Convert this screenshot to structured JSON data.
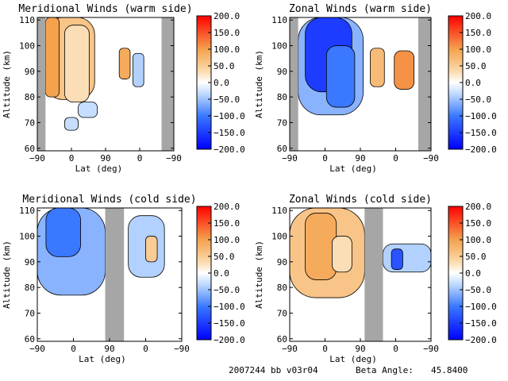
{
  "footer": {
    "date_code": "2007244 bb v03r04",
    "beta_label": "Beta Angle:",
    "beta_value": "45.8400"
  },
  "colorbar": {
    "ticks": [
      "200.0",
      "150.0",
      "100.0",
      "50.0",
      "0.0",
      "−50.0",
      "−100.0",
      "−150.0",
      "−200.0"
    ],
    "min": -200,
    "max": 200,
    "stops": [
      {
        "v": -200,
        "color": "#0000ff"
      },
      {
        "v": -100,
        "color": "#3a78ff"
      },
      {
        "v": -35,
        "color": "#bcd8ff"
      },
      {
        "v": 0,
        "color": "#ffffff"
      },
      {
        "v": 35,
        "color": "#fbd9aa"
      },
      {
        "v": 100,
        "color": "#f4a24e"
      },
      {
        "v": 200,
        "color": "#ff0000"
      }
    ]
  },
  "chart_data": [
    {
      "type": "heatmap",
      "title": "Meridional Winds (warm side)",
      "xlabel": "Lat (deg)",
      "ylabel": "Altitude (km)",
      "xticks": [
        "−90",
        "0",
        "90",
        "0",
        "−90"
      ],
      "ylim": [
        59,
        111
      ],
      "yticks": [
        60,
        70,
        80,
        90,
        100,
        110
      ],
      "gray_bands": [
        [
          0,
          0.06
        ],
        [
          0.91,
          1.0
        ]
      ],
      "regions": [
        {
          "value": 60,
          "x": [
            0.06,
            0.42
          ],
          "y": [
            79,
            111
          ]
        },
        {
          "value": 100,
          "x": [
            0.06,
            0.16
          ],
          "y": [
            80,
            111
          ]
        },
        {
          "value": 30,
          "x": [
            0.2,
            0.38
          ],
          "y": [
            78,
            108
          ]
        },
        {
          "value": 90,
          "x": [
            0.6,
            0.68
          ],
          "y": [
            87,
            99
          ]
        },
        {
          "value": -40,
          "x": [
            0.7,
            0.78
          ],
          "y": [
            84,
            97
          ]
        },
        {
          "value": -30,
          "x": [
            0.3,
            0.44
          ],
          "y": [
            72,
            78
          ]
        },
        {
          "value": -30,
          "x": [
            0.2,
            0.3
          ],
          "y": [
            67,
            72
          ]
        }
      ]
    },
    {
      "type": "heatmap",
      "title": "Zonal Winds (warm side)",
      "xlabel": "Lat (deg)",
      "ylabel": "Altitude (km)",
      "xticks": [
        "−90",
        "0",
        "90",
        "0",
        "−90"
      ],
      "ylim": [
        59,
        111
      ],
      "yticks": [
        60,
        70,
        80,
        90,
        100,
        110
      ],
      "gray_bands": [
        [
          0,
          0.06
        ],
        [
          0.91,
          1.0
        ]
      ],
      "regions": [
        {
          "value": -60,
          "x": [
            0.06,
            0.52
          ],
          "y": [
            73,
            111
          ]
        },
        {
          "value": -150,
          "x": [
            0.11,
            0.44
          ],
          "y": [
            82,
            111
          ]
        },
        {
          "value": -100,
          "x": [
            0.26,
            0.46
          ],
          "y": [
            76,
            100
          ]
        },
        {
          "value": 70,
          "x": [
            0.57,
            0.67
          ],
          "y": [
            84,
            99
          ]
        },
        {
          "value": 110,
          "x": [
            0.74,
            0.88
          ],
          "y": [
            83,
            98
          ]
        }
      ]
    },
    {
      "type": "heatmap",
      "title": "Meridional Winds (cold side)",
      "xlabel": "Lat (deg)",
      "ylabel": "Altitude (km)",
      "xticks": [
        "−90",
        "0",
        "90",
        "0",
        "−90"
      ],
      "ylim": [
        59,
        111
      ],
      "yticks": [
        60,
        70,
        80,
        90,
        100,
        110
      ],
      "gray_bands": [
        [
          0.47,
          0.6
        ]
      ],
      "regions": [
        {
          "value": -60,
          "x": [
            0.0,
            0.47
          ],
          "y": [
            77,
            111
          ]
        },
        {
          "value": -100,
          "x": [
            0.06,
            0.3
          ],
          "y": [
            92,
            111
          ]
        },
        {
          "value": -40,
          "x": [
            0.63,
            0.88
          ],
          "y": [
            84,
            108
          ]
        },
        {
          "value": 50,
          "x": [
            0.75,
            0.83
          ],
          "y": [
            90,
            100
          ]
        }
      ]
    },
    {
      "type": "heatmap",
      "title": "Zonal Winds (cold side)",
      "xlabel": "Lat (deg)",
      "ylabel": "Altitude (km)",
      "xticks": [
        "−90",
        "0",
        "90",
        "0",
        "−90"
      ],
      "ylim": [
        59,
        111
      ],
      "yticks": [
        60,
        70,
        80,
        90,
        100,
        110
      ],
      "gray_bands": [
        [
          0.53,
          0.66
        ]
      ],
      "regions": [
        {
          "value": 60,
          "x": [
            0.0,
            0.53
          ],
          "y": [
            76,
            111
          ]
        },
        {
          "value": 90,
          "x": [
            0.11,
            0.33
          ],
          "y": [
            83,
            109
          ]
        },
        {
          "value": 30,
          "x": [
            0.3,
            0.44
          ],
          "y": [
            86,
            100
          ]
        },
        {
          "value": -40,
          "x": [
            0.66,
            1.0
          ],
          "y": [
            86,
            97
          ]
        },
        {
          "value": -130,
          "x": [
            0.72,
            0.8
          ],
          "y": [
            87,
            95
          ]
        }
      ]
    }
  ]
}
